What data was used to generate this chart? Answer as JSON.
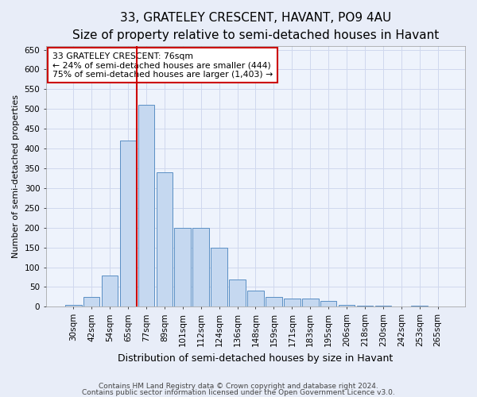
{
  "title": "33, GRATELEY CRESCENT, HAVANT, PO9 4AU",
  "subtitle": "Size of property relative to semi-detached houses in Havant",
  "xlabel": "Distribution of semi-detached houses by size in Havant",
  "ylabel": "Number of semi-detached properties",
  "footnote1": "Contains HM Land Registry data © Crown copyright and database right 2024.",
  "footnote2": "Contains public sector information licensed under the Open Government Licence v3.0.",
  "bar_labels": [
    "30sqm",
    "42sqm",
    "54sqm",
    "65sqm",
    "77sqm",
    "89sqm",
    "101sqm",
    "112sqm",
    "124sqm",
    "136sqm",
    "148sqm",
    "159sqm",
    "171sqm",
    "183sqm",
    "195sqm",
    "206sqm",
    "218sqm",
    "230sqm",
    "242sqm",
    "253sqm",
    "265sqm"
  ],
  "bar_values": [
    5,
    25,
    80,
    420,
    510,
    340,
    200,
    200,
    150,
    70,
    40,
    25,
    20,
    20,
    15,
    5,
    3,
    2,
    0,
    2,
    1
  ],
  "bar_color": "#c5d8f0",
  "bar_edge_color": "#5a8fc4",
  "vline_index": 4,
  "vline_color": "#cc0000",
  "annotation_text": "33 GRATELEY CRESCENT: 76sqm\n← 24% of semi-detached houses are smaller (444)\n75% of semi-detached houses are larger (1,403) →",
  "ylim": [
    0,
    660
  ],
  "yticks": [
    0,
    50,
    100,
    150,
    200,
    250,
    300,
    350,
    400,
    450,
    500,
    550,
    600,
    650
  ],
  "bg_color": "#e8edf8",
  "plot_bg_color": "#eef3fc",
  "grid_color": "#d0d8ee",
  "title_fontsize": 11,
  "subtitle_fontsize": 9,
  "ylabel_fontsize": 8,
  "xlabel_fontsize": 9,
  "tick_fontsize": 7.5,
  "footnote_fontsize": 6.5
}
